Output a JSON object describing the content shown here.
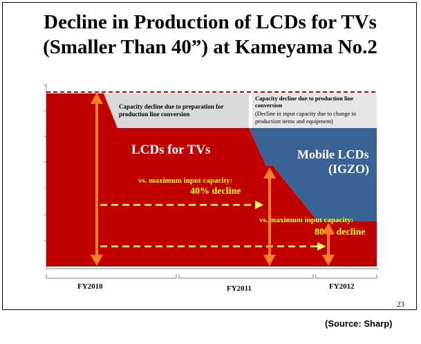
{
  "title_line1": "Decline in Production of LCDs for TVs",
  "title_line2": "(Smaller Than 40”) at Kameyama No.2",
  "page_number": "23",
  "source": "(Source: Sharp)",
  "colors": {
    "tv_lcd": "#c00000",
    "mobile_lcd": "#3a6395",
    "capacity_decline": "#d9d9d9",
    "arrow": "#ff7f27",
    "dashed_arrow": "#ffff66",
    "yellow_text": "#ffff00",
    "capacity_line": "#c00000"
  },
  "chart_data": {
    "type": "area",
    "categories": [
      "FY2010",
      "FY2011",
      "FY2012"
    ],
    "series": [
      {
        "name": "LCDs for TVs"
      },
      {
        "name": "Mobile LCDs\n(IGZO)"
      }
    ],
    "annotations": {
      "capacity_decline_1": [
        "Capacity decline due to preparation for",
        "production line conversion"
      ],
      "capacity_decline_2": [
        "Capacity decline due to production line",
        "conversion",
        "(Decline in input capacity due to change in",
        "production items and equipment)"
      ],
      "decline_40_label": "vs. maximum input capacity:",
      "decline_40_value": "40% decline",
      "decline_80_label": "vs. maximum input capacity:",
      "decline_80_value": "80% decline"
    },
    "series_labels": {
      "tv": "LCDs for TVs",
      "mobile_line1": "Mobile LCDs",
      "mobile_line2": "(IGZO)"
    },
    "decline_vs_max_capacity_pct": {
      "FY2011": 40,
      "FY2012": 80
    }
  }
}
